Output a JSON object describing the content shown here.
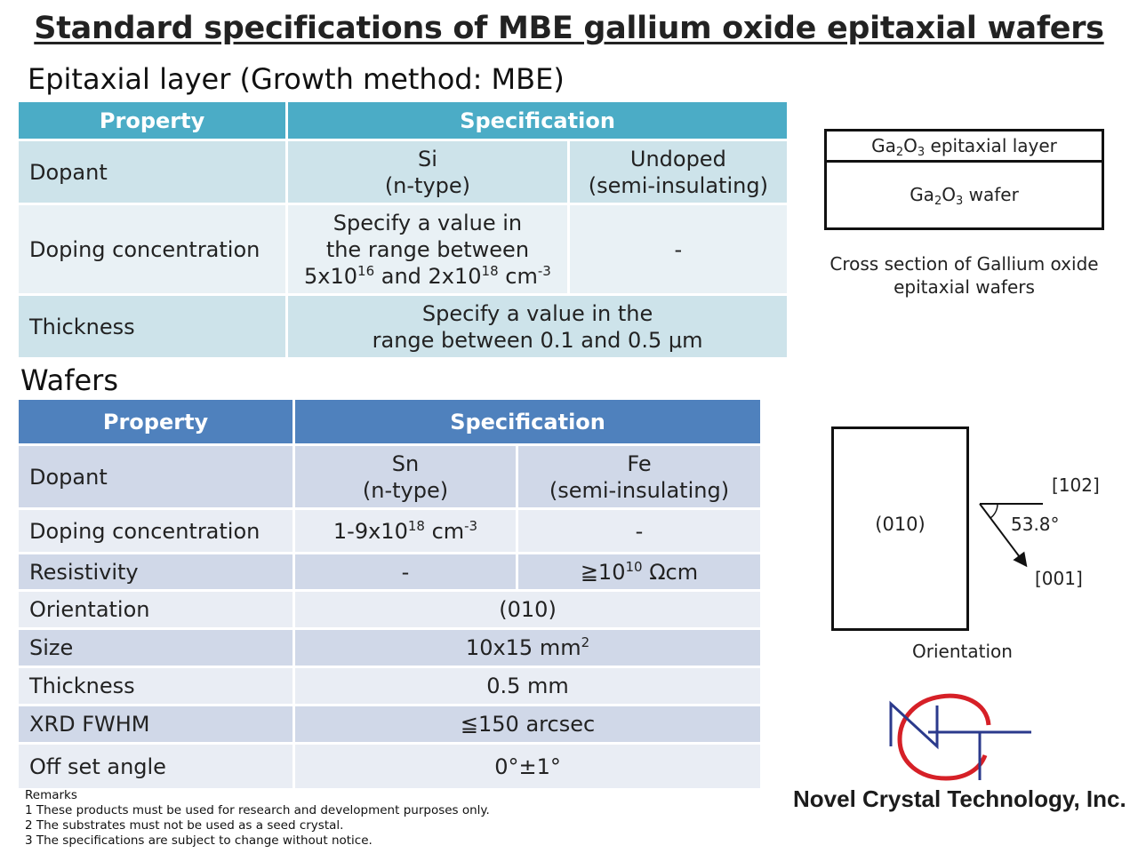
{
  "title": "Standard specifications of MBE gallium oxide epitaxial wafers",
  "epi": {
    "heading": "Epitaxial layer (Growth method: MBE)",
    "col_property": "Property",
    "col_spec": "Specification",
    "rows": {
      "dopant": {
        "label": "Dopant",
        "a1": "Si",
        "a2": "(n-type)",
        "b1": "Undoped",
        "b2": "(semi-insulating)"
      },
      "doping": {
        "label": "Doping concentration",
        "l1": "Specify a value in",
        "l2": "the range between",
        "l3a": "5x10",
        "l3a_exp": "16",
        "l3b": " and 2x10",
        "l3b_exp": "18",
        "l3c": " cm",
        "l3c_exp": "-3",
        "b": "-"
      },
      "thickness": {
        "label": "Thickness",
        "l1": "Specify a value in the",
        "l2": "range between 0.1 and 0.5 μm"
      }
    }
  },
  "wafers": {
    "heading": "Wafers",
    "col_property": "Property",
    "col_spec": "Specification",
    "rows": {
      "dopant": {
        "label": "Dopant",
        "a1": "Sn",
        "a2": "(n-type)",
        "b1": "Fe",
        "b2": "(semi-insulating)"
      },
      "doping": {
        "label": "Doping concentration",
        "a_base": "1-9x10",
        "a_exp": "18",
        "a_unit": " cm",
        "a_unit_exp": "-3",
        "b": "-"
      },
      "resistivity": {
        "label": "Resistivity",
        "a": "-",
        "b_base": "≧10",
        "b_exp": "10",
        "b_unit": " Ωcm"
      },
      "orientation": {
        "label": "Orientation",
        "value": "(010)"
      },
      "size": {
        "label": "Size",
        "value": "10x15 mm",
        "value_exp": "2"
      },
      "thickness": {
        "label": "Thickness",
        "value": "0.5 mm"
      },
      "xrd": {
        "label": "XRD FWHM",
        "value": "≦150 arcsec"
      },
      "offset": {
        "label": "Off set angle",
        "value": "0°±1°"
      }
    }
  },
  "cross_section": {
    "layer_pre": "Ga",
    "layer_sub1": "2",
    "layer_mid": "O",
    "layer_sub2": "3",
    "layer_post": " epitaxial layer",
    "wafer_pre": "Ga",
    "wafer_sub1": "2",
    "wafer_mid": "O",
    "wafer_sub2": "3",
    "wafer_post": " wafer",
    "caption1": "Cross section of Gallium oxide",
    "caption2": "epitaxial wafers"
  },
  "orientation_diagram": {
    "face": "(010)",
    "dir1": "[102]",
    "dir2": "[001]",
    "angle": "53.8°",
    "caption": "Orientation"
  },
  "remarks": {
    "title": "Remarks",
    "items": [
      "1 These products must be used for research and development purposes only.",
      "2 The substrates must not be used as a seed crystal.",
      "3 The specifications are subject to change without notice."
    ]
  },
  "company": "Novel Crystal Technology, Inc.",
  "colors": {
    "epi_header": "#4bacc6",
    "wafer_header": "#4f81bd",
    "logo_red": "#d62027",
    "logo_blue": "#2b3a8c"
  }
}
